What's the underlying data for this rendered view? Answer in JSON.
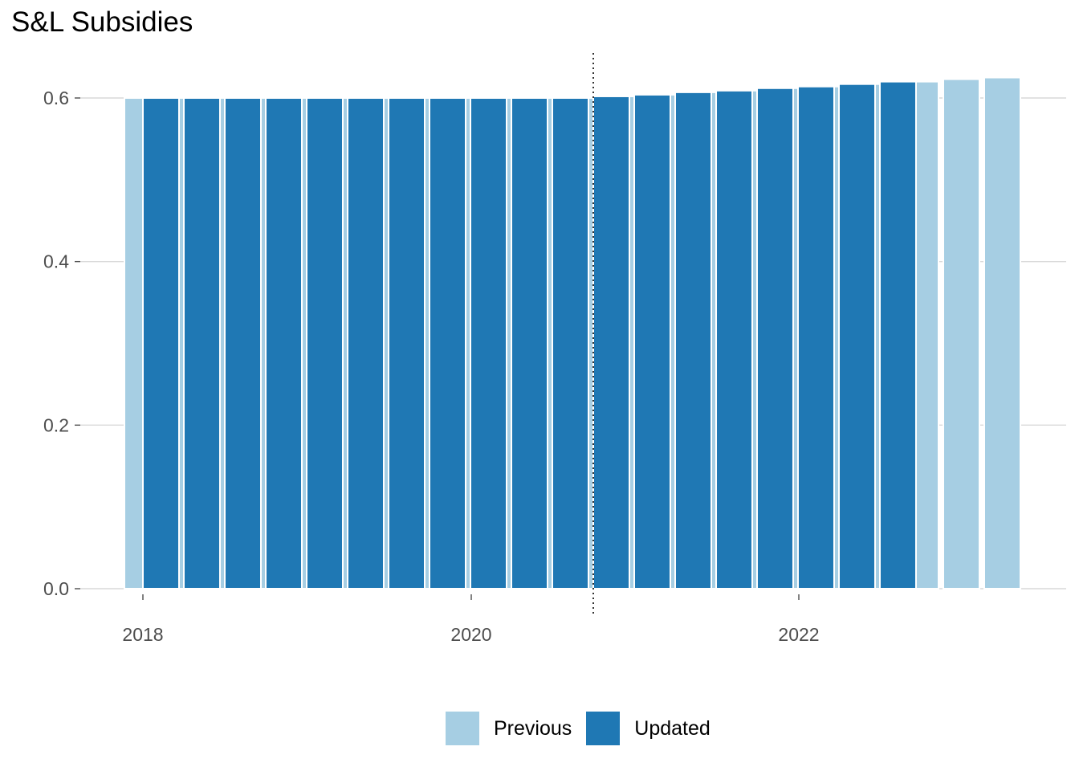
{
  "chart_data": {
    "type": "bar",
    "title": "S&L Subsidies",
    "xlabel": "",
    "ylabel": "",
    "categories": [
      "2017 Q4",
      "2018 Q1",
      "2018 Q2",
      "2018 Q3",
      "2018 Q4",
      "2019 Q1",
      "2019 Q2",
      "2019 Q3",
      "2019 Q4",
      "2020 Q1",
      "2020 Q2",
      "2020 Q3",
      "2020 Q4",
      "2021 Q1",
      "2021 Q2",
      "2021 Q3",
      "2021 Q4",
      "2022 Q1",
      "2022 Q2",
      "2022 Q3",
      "2022 Q4",
      "2023 Q1"
    ],
    "x_ticks": [
      "2018",
      "2020",
      "2022"
    ],
    "y_ticks": [
      "0.0",
      "0.2",
      "0.4",
      "0.6"
    ],
    "ylim": [
      0,
      0.65
    ],
    "grid": "horizontal major gridlines",
    "vertical_reference": {
      "style": "dotted",
      "at": "2020 Q4"
    },
    "legend_position": "bottom",
    "series": [
      {
        "name": "Previous",
        "color": "#a6cee3",
        "values": [
          0.6,
          0.6,
          0.6,
          0.6,
          0.6,
          0.6,
          0.6,
          0.6,
          0.6,
          0.6,
          0.6,
          0.6,
          0.602,
          0.604,
          0.607,
          0.609,
          0.612,
          0.614,
          0.617,
          0.62,
          0.623,
          0.625
        ]
      },
      {
        "name": "Updated",
        "color": "#1f78b4",
        "values": [
          0.6,
          0.6,
          0.6,
          0.6,
          0.6,
          0.6,
          0.6,
          0.6,
          0.6,
          0.6,
          0.6,
          0.602,
          0.604,
          0.607,
          0.609,
          0.612,
          0.614,
          0.617,
          0.62,
          null,
          null,
          null
        ]
      }
    ]
  }
}
